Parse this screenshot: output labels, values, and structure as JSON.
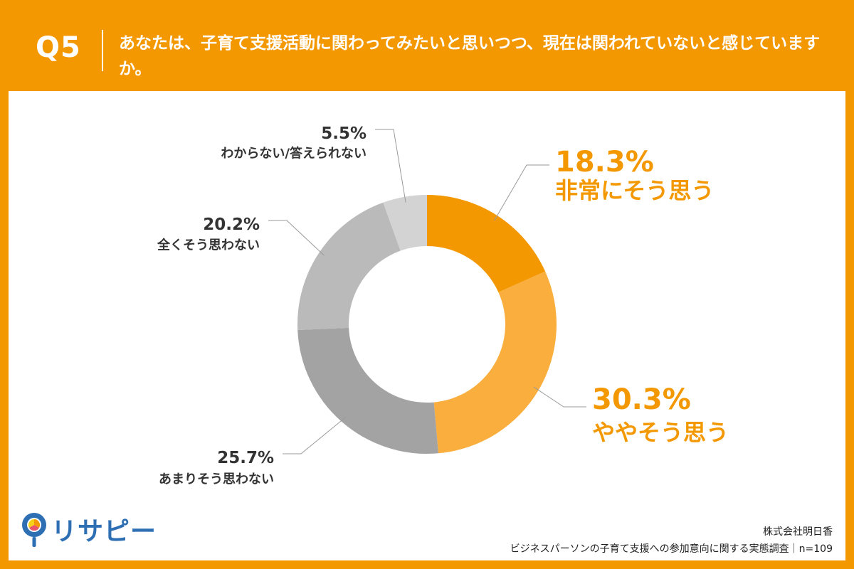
{
  "header": {
    "q_label": "Q5",
    "question": "あなたは、子育て支援活動に関わってみたいと思いつつ、現在は関われていないと感じていますか。"
  },
  "chart_data": {
    "type": "pie",
    "donut": true,
    "start": "12 o'clock, clockwise",
    "slices": [
      {
        "label": "非常にそう思う",
        "value": 18.3,
        "value_text": "18.3%",
        "color": "#f39800",
        "text_color": "#f39800",
        "highlight": true
      },
      {
        "label": "ややそう思う",
        "value": 30.3,
        "value_text": "30.3%",
        "color": "#f9ae3d",
        "text_color": "#f39800",
        "highlight": true
      },
      {
        "label": "あまりそう思わない",
        "value": 25.7,
        "value_text": "25.7%",
        "color": "#a3a3a3",
        "text_color": "#333333",
        "highlight": false
      },
      {
        "label": "全くそう思わない",
        "value": 20.2,
        "value_text": "20.2%",
        "color": "#bababa",
        "text_color": "#333333",
        "highlight": false
      },
      {
        "label": "わからない/答えられない",
        "value": 5.5,
        "value_text": "5.5%",
        "color": "#d3d3d3",
        "text_color": "#333333",
        "highlight": false
      }
    ]
  },
  "branding": {
    "logo_text": "リサピー",
    "logo_mark": "magnifier-pie-icon"
  },
  "source": {
    "company": "株式会社明日香",
    "survey": "ビジネスパーソンの子育て支援への参加意向に関する実態調査｜n=109"
  }
}
